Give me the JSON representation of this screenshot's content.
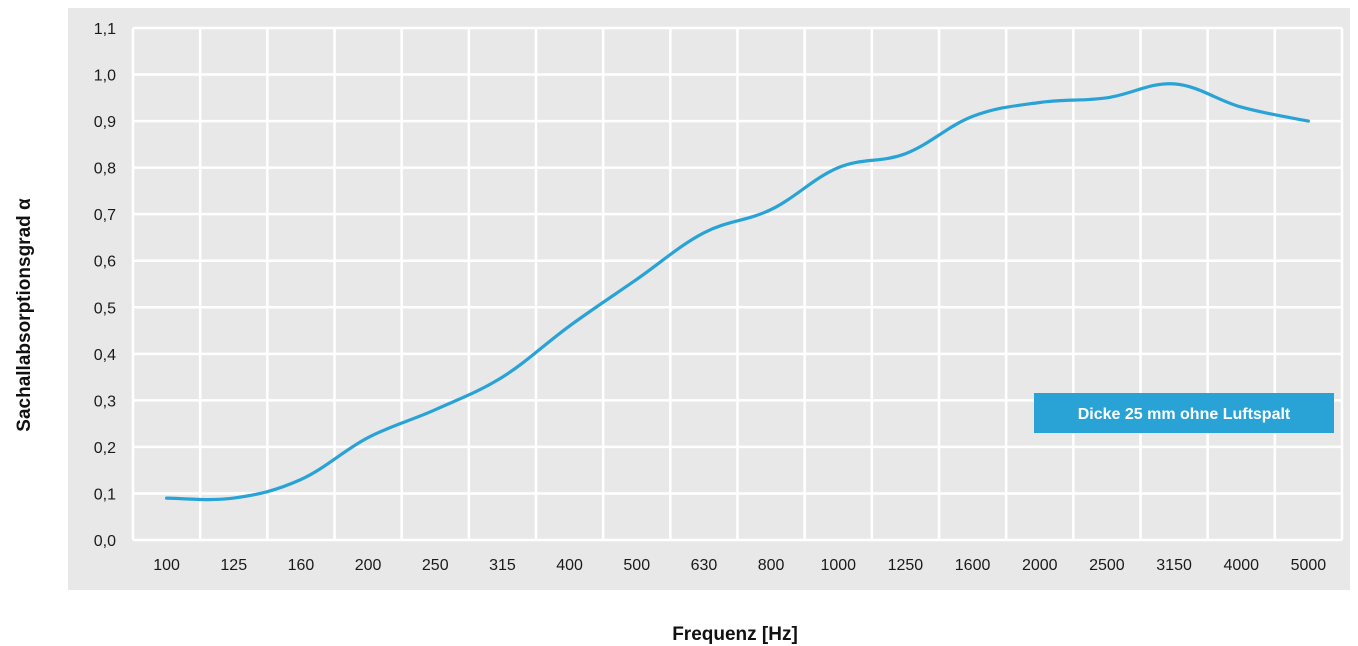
{
  "chart_data": {
    "type": "line",
    "title": "",
    "xlabel": "Frequenz [Hz]",
    "ylabel": "Sachallabsorptionsgrad α",
    "categories": [
      "100",
      "125",
      "160",
      "200",
      "250",
      "315",
      "400",
      "500",
      "630",
      "800",
      "1000",
      "1250",
      "1600",
      "2000",
      "2500",
      "3150",
      "4000",
      "5000"
    ],
    "y_tick_labels": [
      "0,0",
      "0,1",
      "0,2",
      "0,3",
      "0,4",
      "0,5",
      "0,6",
      "0,7",
      "0,8",
      "0,9",
      "1,0",
      "1,1"
    ],
    "ylim": [
      0,
      1.1
    ],
    "grid": true,
    "legend_position": "right",
    "series": [
      {
        "name": "Dicke 25 mm ohne Luftspalt",
        "color": "#29a3d6",
        "values": [
          0.09,
          0.09,
          0.13,
          0.22,
          0.28,
          0.35,
          0.46,
          0.56,
          0.66,
          0.71,
          0.8,
          0.83,
          0.91,
          0.94,
          0.95,
          0.98,
          0.93,
          0.9
        ]
      }
    ]
  },
  "colors": {
    "plot_background": "#e8e8e8",
    "grid": "#ffffff",
    "line": "#29a3d6"
  }
}
